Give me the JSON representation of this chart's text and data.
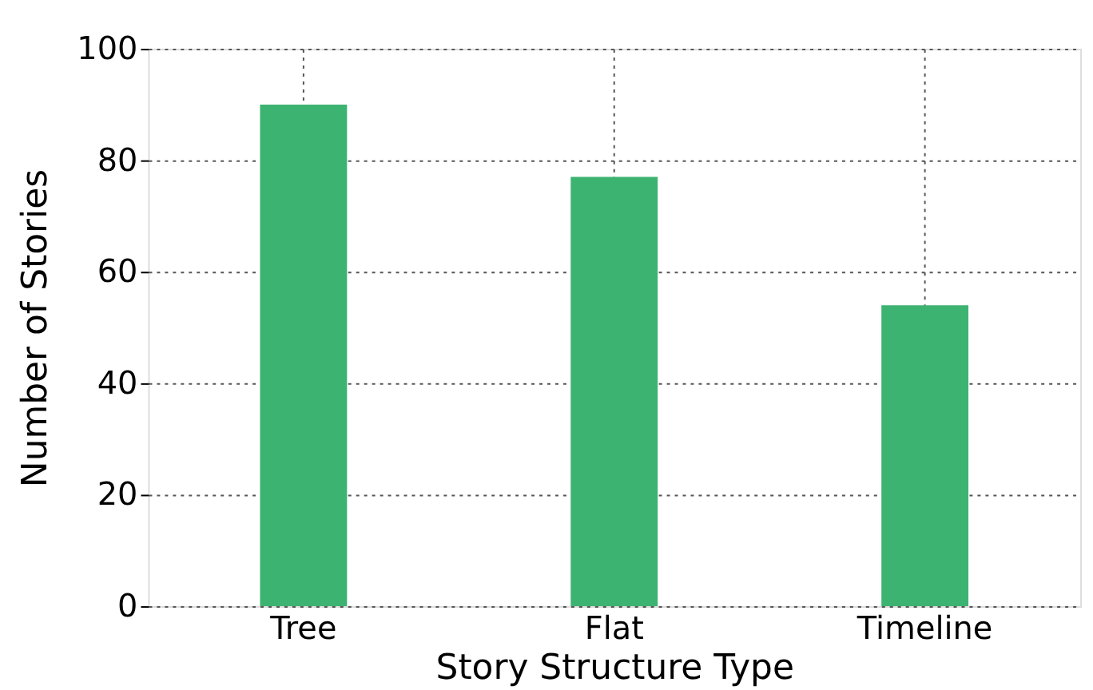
{
  "chart_data": {
    "type": "bar",
    "xlabel": "Story Structure Type",
    "ylabel": "Number of Stories",
    "categories": [
      "Tree",
      "Flat",
      "Timeline"
    ],
    "values": [
      90,
      77,
      54
    ],
    "color": "#3cb371",
    "ylim": [
      0,
      100
    ],
    "yticks": [
      0,
      20,
      40,
      60,
      80,
      100
    ],
    "grid": true
  }
}
